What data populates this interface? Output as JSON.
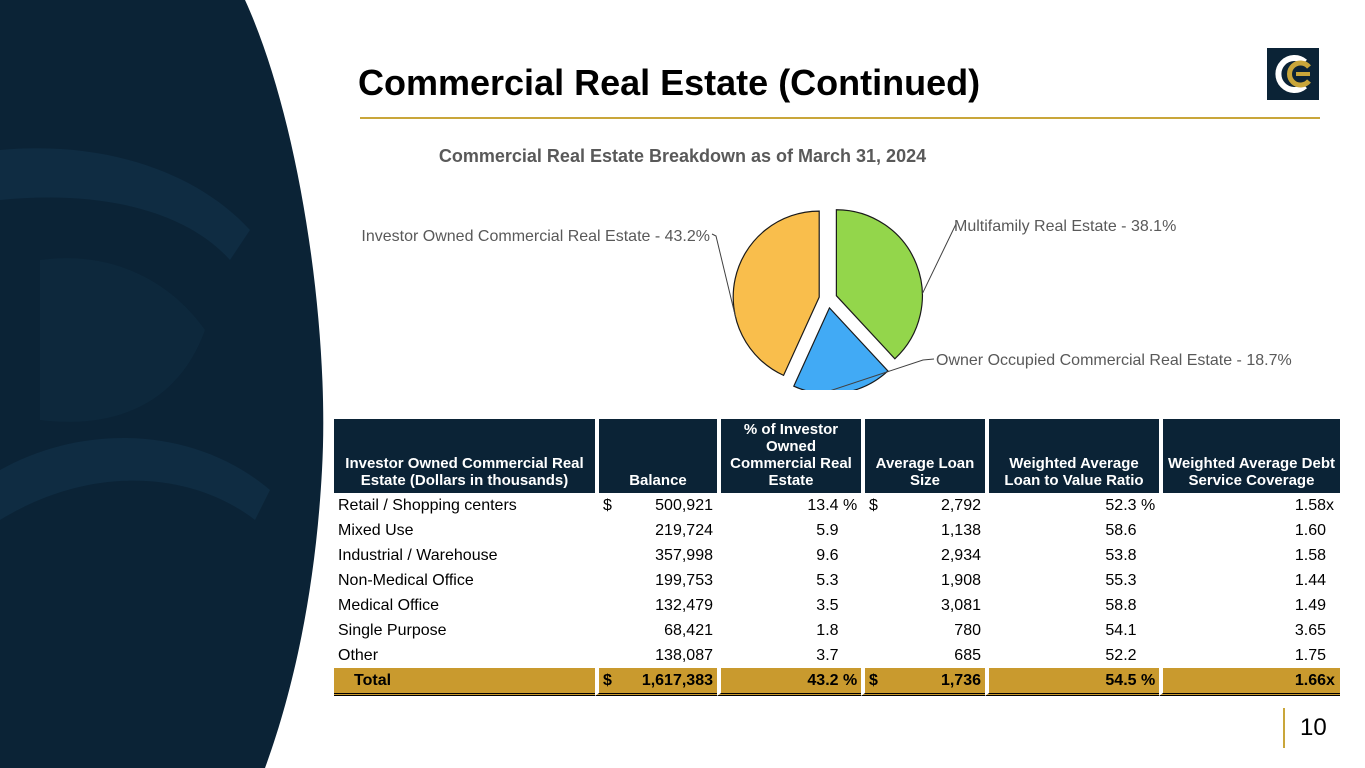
{
  "slide": {
    "title": "Commercial Real Estate (Continued)",
    "page_number": "10",
    "colors": {
      "navy": "#0b2336",
      "gold": "#c99a2e",
      "green": "#8fd14f",
      "blue": "#40a9f5",
      "orange": "#f9be4a"
    }
  },
  "chart_data": {
    "type": "pie",
    "title": "Commercial Real Estate Breakdown as of March 31, 2024",
    "slices": [
      {
        "label": "Multifamily Real Estate - 38.1%",
        "value": 38.1,
        "color": "#93d64b"
      },
      {
        "label": "Owner Occupied Commercial Real Estate - 18.7%",
        "value": 18.7,
        "color": "#41aaf5"
      },
      {
        "label": "Investor Owned Commercial Real Estate - 43.2%",
        "value": 43.2,
        "color": "#f9be4c"
      }
    ]
  },
  "table": {
    "headers": [
      "Investor Owned Commercial Real Estate (Dollars in thousands)",
      "Balance",
      "% of Investor Owned Commercial Real Estate",
      "Average Loan Size",
      "Weighted Average Loan to Value Ratio",
      "Weighted Average Debt Service Coverage"
    ],
    "rows": [
      {
        "label": "Retail / Shopping centers",
        "cur1": "$",
        "balance": "500,921",
        "pct": "13.4",
        "pct_sign": "%",
        "cur2": "$",
        "avg": "2,792",
        "ltv": "52.3",
        "ltv_sign": "%",
        "dscr": "1.58",
        "x": "x"
      },
      {
        "label": "Mixed Use",
        "cur1": "",
        "balance": "219,724",
        "pct": "5.9",
        "pct_sign": "",
        "cur2": "",
        "avg": "1,138",
        "ltv": "58.6",
        "ltv_sign": "",
        "dscr": "1.60",
        "x": ""
      },
      {
        "label": "Industrial / Warehouse",
        "cur1": "",
        "balance": "357,998",
        "pct": "9.6",
        "pct_sign": "",
        "cur2": "",
        "avg": "2,934",
        "ltv": "53.8",
        "ltv_sign": "",
        "dscr": "1.58",
        "x": ""
      },
      {
        "label": "Non-Medical Office",
        "cur1": "",
        "balance": "199,753",
        "pct": "5.3",
        "pct_sign": "",
        "cur2": "",
        "avg": "1,908",
        "ltv": "55.3",
        "ltv_sign": "",
        "dscr": "1.44",
        "x": ""
      },
      {
        "label": "Medical Office",
        "cur1": "",
        "balance": "132,479",
        "pct": "3.5",
        "pct_sign": "",
        "cur2": "",
        "avg": "3,081",
        "ltv": "58.8",
        "ltv_sign": "",
        "dscr": "1.49",
        "x": ""
      },
      {
        "label": "Single Purpose",
        "cur1": "",
        "balance": "68,421",
        "pct": "1.8",
        "pct_sign": "",
        "cur2": "",
        "avg": "780",
        "ltv": "54.1",
        "ltv_sign": "",
        "dscr": "3.65",
        "x": ""
      },
      {
        "label": "Other",
        "cur1": "",
        "balance": "138,087",
        "pct": "3.7",
        "pct_sign": "",
        "cur2": "",
        "avg": "685",
        "ltv": "52.2",
        "ltv_sign": "",
        "dscr": "1.75",
        "x": ""
      }
    ],
    "total": {
      "label": "Total",
      "cur1": "$",
      "balance": "1,617,383",
      "pct": "43.2",
      "pct_sign": "%",
      "cur2": "$",
      "avg": "1,736",
      "ltv": "54.5",
      "ltv_sign": "%",
      "dscr": "1.66",
      "x": "x"
    }
  }
}
